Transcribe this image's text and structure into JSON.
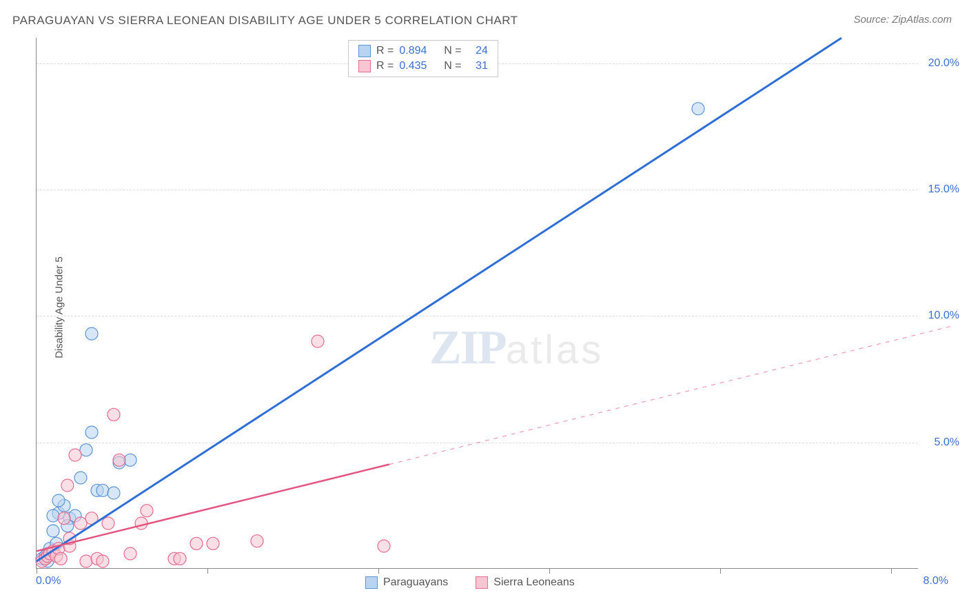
{
  "title": "PARAGUAYAN VS SIERRA LEONEAN DISABILITY AGE UNDER 5 CORRELATION CHART",
  "source": "Source: ZipAtlas.com",
  "ylabel": "Disability Age Under 5",
  "watermark_zip": "ZIP",
  "watermark_atlas": "atlas",
  "chart": {
    "type": "scatter-with-regression",
    "xlim": [
      0,
      8.0
    ],
    "ylim": [
      0,
      21.0
    ],
    "x_tick_positions": [
      0,
      1.55,
      3.1,
      4.65,
      6.2,
      7.75
    ],
    "x_tick_labels_shown": {
      "0": "0.0%",
      "7.75": "8.0%"
    },
    "y_tick_positions": [
      5.0,
      10.0,
      15.0,
      20.0
    ],
    "y_tick_labels": [
      "5.0%",
      "10.0%",
      "15.0%",
      "20.0%"
    ],
    "grid_color": "#dcdcdc",
    "axis_color": "#888888",
    "background_color": "#ffffff",
    "label_fontsize": 15,
    "tick_fontsize": 16,
    "tick_color": "#3b6fd4",
    "marker_radius": 9,
    "marker_stroke_width": 1.2,
    "series": [
      {
        "name": "Paraguayans",
        "fill_color": "#b8d4f0",
        "stroke_color": "#5b94d6",
        "line_color": "#2e6fd6",
        "line_width": 3,
        "line_dash": "none",
        "R": "0.894",
        "N": "24",
        "regression": {
          "x1": 0.0,
          "y1": 0.3,
          "x2": 7.3,
          "y2": 21.0
        },
        "points": [
          [
            0.05,
            0.4
          ],
          [
            0.1,
            0.6
          ],
          [
            0.12,
            0.8
          ],
          [
            0.15,
            1.5
          ],
          [
            0.18,
            1.0
          ],
          [
            0.2,
            2.2
          ],
          [
            0.25,
            2.5
          ],
          [
            0.3,
            2.0
          ],
          [
            0.35,
            2.1
          ],
          [
            0.28,
            1.7
          ],
          [
            0.4,
            3.6
          ],
          [
            0.45,
            4.7
          ],
          [
            0.5,
            5.4
          ],
          [
            0.55,
            3.1
          ],
          [
            0.6,
            3.1
          ],
          [
            0.7,
            3.0
          ],
          [
            0.75,
            4.2
          ],
          [
            0.85,
            4.3
          ],
          [
            0.5,
            9.3
          ],
          [
            0.15,
            2.1
          ],
          [
            0.2,
            2.7
          ],
          [
            0.08,
            0.5
          ],
          [
            0.1,
            0.3
          ],
          [
            6.0,
            18.2
          ]
        ]
      },
      {
        "name": "Sierra Leoneans",
        "fill_color": "#f6c6d2",
        "stroke_color": "#e46a8f",
        "line_color": "#e3547f",
        "line_width": 2.5,
        "line_dash": "solid-then-dashed",
        "dash_from_x": 3.2,
        "R": "0.435",
        "N": "31",
        "regression": {
          "x1": 0.0,
          "y1": 0.7,
          "x2": 8.3,
          "y2": 9.6
        },
        "points": [
          [
            0.05,
            0.3
          ],
          [
            0.08,
            0.4
          ],
          [
            0.1,
            0.5
          ],
          [
            0.12,
            0.6
          ],
          [
            0.15,
            0.7
          ],
          [
            0.18,
            0.5
          ],
          [
            0.2,
            0.8
          ],
          [
            0.22,
            0.4
          ],
          [
            0.25,
            2.0
          ],
          [
            0.28,
            3.3
          ],
          [
            0.3,
            0.9
          ],
          [
            0.35,
            4.5
          ],
          [
            0.4,
            1.8
          ],
          [
            0.45,
            0.3
          ],
          [
            0.5,
            2.0
          ],
          [
            0.55,
            0.4
          ],
          [
            0.6,
            0.3
          ],
          [
            0.65,
            1.8
          ],
          [
            0.7,
            6.1
          ],
          [
            0.75,
            4.3
          ],
          [
            0.85,
            0.6
          ],
          [
            0.95,
            1.8
          ],
          [
            1.0,
            2.3
          ],
          [
            1.25,
            0.4
          ],
          [
            1.3,
            0.4
          ],
          [
            1.45,
            1.0
          ],
          [
            1.6,
            1.0
          ],
          [
            2.0,
            1.1
          ],
          [
            2.55,
            9.0
          ],
          [
            3.15,
            0.9
          ],
          [
            0.3,
            1.2
          ]
        ]
      }
    ]
  },
  "legend_top": {
    "rows": [
      {
        "swatch_fill": "#b8d4f0",
        "swatch_border": "#5b94d6",
        "r_label": "R =",
        "r_val": "0.894",
        "n_label": "N =",
        "n_val": "24"
      },
      {
        "swatch_fill": "#f6c6d2",
        "swatch_border": "#e46a8f",
        "r_label": "R =",
        "r_val": "0.435",
        "n_label": "N =",
        "n_val": "31"
      }
    ]
  },
  "legend_bottom": {
    "items": [
      {
        "swatch_fill": "#b8d4f0",
        "swatch_border": "#5b94d6",
        "label": "Paraguayans"
      },
      {
        "swatch_fill": "#f6c6d2",
        "swatch_border": "#e46a8f",
        "label": "Sierra Leoneans"
      }
    ]
  }
}
